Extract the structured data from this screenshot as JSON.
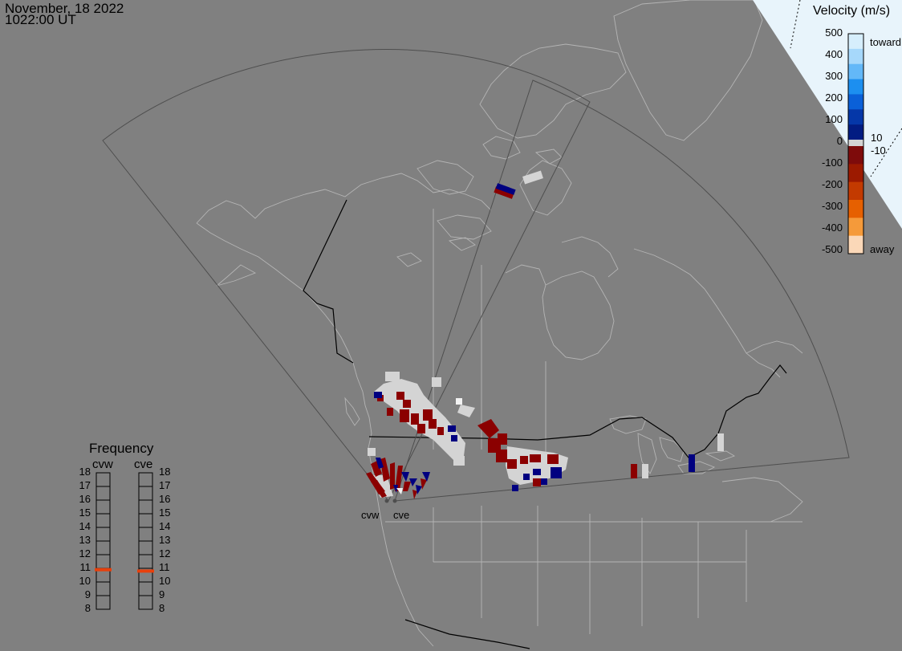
{
  "header": {
    "date": "November, 18 2022",
    "time": "1022:00 UT"
  },
  "frequency_panel": {
    "title": "Frequency",
    "radars": [
      "cvw",
      "cve"
    ],
    "ticks": [
      "18",
      "17",
      "16",
      "15",
      "14",
      "13",
      "12",
      "11",
      "10",
      "9",
      "8"
    ],
    "current_mhz": {
      "cvw": 10.9,
      "cve": 10.8
    },
    "marker_color": "#e8400c"
  },
  "velocity_scale": {
    "title": "Velocity (m/s)",
    "labels": [
      "500",
      "400",
      "300",
      "200",
      "100",
      "0",
      "-100",
      "-200",
      "-300",
      "-400",
      "-500"
    ],
    "toward_label": "toward",
    "away_label": "away",
    "inner_plus": "10",
    "inner_minus": "-10",
    "colors_toward": [
      "#d6eefc",
      "#a6d8fb",
      "#63b8f8",
      "#1c8ff0",
      "#0a60d8",
      "#0537a8",
      "#021c82"
    ],
    "colors_away": [
      "#7e0b0b",
      "#9c1a00",
      "#c33a00",
      "#e66000",
      "#f59a3a",
      "#fbd8b8"
    ]
  },
  "map": {
    "radar_sites": [
      {
        "name": "cvw",
        "label": "cvw"
      },
      {
        "name": "cve",
        "label": "cve"
      }
    ],
    "colors": {
      "background": "#808080",
      "coastline": "#b4b4b4",
      "border": "#000000",
      "fov": "#4e4e4e",
      "ground_scatter": "#d4d4d4",
      "away": "#8b0000",
      "toward": "#000080"
    }
  }
}
